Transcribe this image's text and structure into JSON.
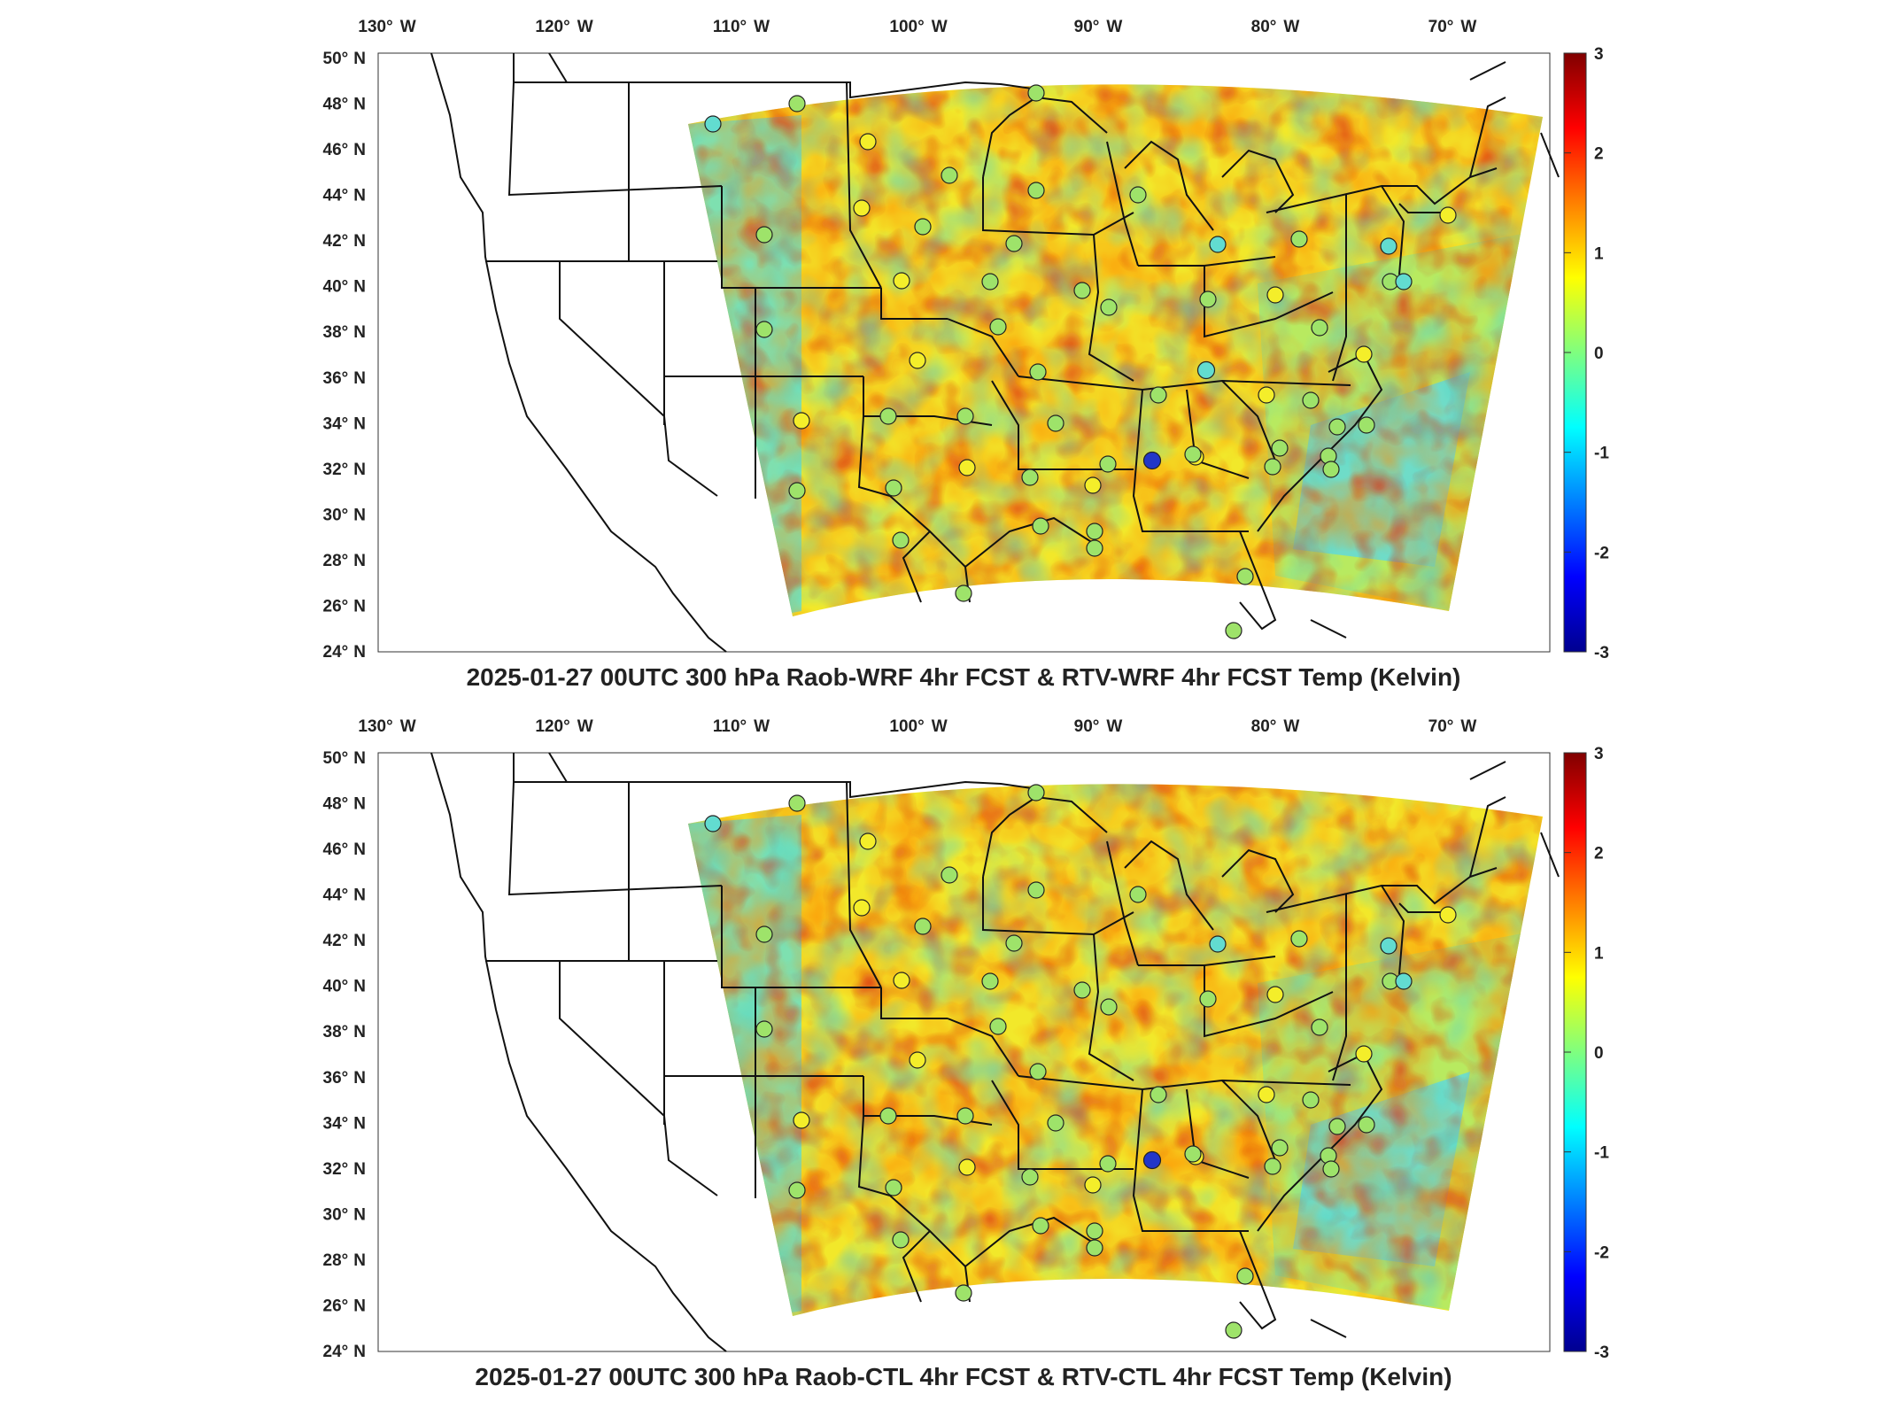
{
  "panels": [
    {
      "id": "top",
      "title": "2025-01-27 00UTC 300 hPa Raob-WRF 4hr FCST & RTV-WRF 4hr FCST Temp (Kelvin)",
      "stations_low": [
        [
          941,
          410
        ],
        [
          1002,
          308
        ]
      ]
    },
    {
      "id": "bottom",
      "title": "2025-01-27 00UTC 300 hPa Raob-CTL 4hr FCST & RTV-CTL 4hr FCST Temp (Kelvin)",
      "stations_low": [
        [
          941,
          410
        ]
      ]
    }
  ],
  "lon_labels": [
    "130",
    "120",
    "110",
    "100",
    "90",
    "80",
    "70"
  ],
  "lon_suffix": "W",
  "lat_labels": [
    "50",
    "48",
    "46",
    "44",
    "42",
    "40",
    "38",
    "36",
    "34",
    "32",
    "30",
    "28",
    "26",
    "24"
  ],
  "lat_suffix": "N",
  "colorbar": {
    "min": -3,
    "max": 3,
    "ticks": [
      "3",
      "2",
      "1",
      "0",
      "-1",
      "-2",
      "-3"
    ],
    "colormap": "jet"
  },
  "colors": {
    "hot": "#e03a10",
    "warm": "#f5a21a",
    "yellow": "#f4ee2a",
    "green": "#9ee36a",
    "cyan": "#62dcd0",
    "blue": "#2236c8"
  }
}
